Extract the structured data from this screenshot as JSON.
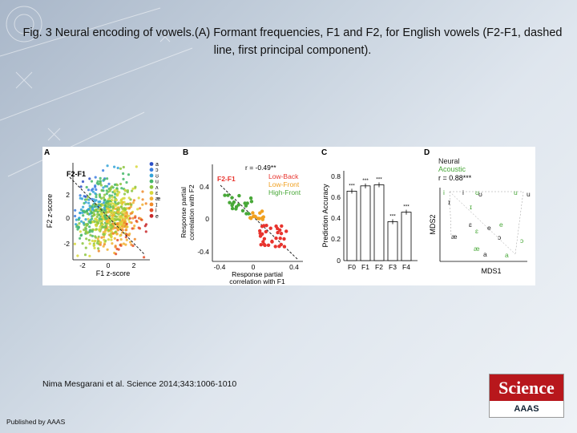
{
  "slide": {
    "title": "Fig. 3 Neural encoding of vowels.(A) Formant frequencies, F1 and F2, for English vowels (F2-F1, dashed line, first principal component).",
    "citation": "Nima Mesgarani et al. Science 2014;343:1006-1010",
    "publisher": "Published by AAAS"
  },
  "logo": {
    "top_text": "Science",
    "bottom_text": "AAAS"
  },
  "figure": {
    "panels": [
      {
        "id": "A",
        "label": "A",
        "line_label": "F2-F1",
        "xlabel": "F1 z-score",
        "ylabel": "F2 z-score",
        "xticks": [
          "-2",
          "0",
          "2"
        ],
        "yticks": [
          "2",
          "0",
          "-2"
        ],
        "legend": [
          "a",
          "ɔ",
          "ʊ",
          "u",
          "ʌ",
          "ɛ",
          "æ",
          "ɪ",
          "i",
          "e"
        ]
      },
      {
        "id": "B",
        "label": "B",
        "line_label": "F2-F1",
        "stat": "r = -0.49**",
        "legend": [
          {
            "name": "Low-Back",
            "color": "#e8342e"
          },
          {
            "name": "Low-Front",
            "color": "#f0a020"
          },
          {
            "name": "High-Front",
            "color": "#48a838"
          }
        ],
        "xlabel_line1": "Response partial",
        "xlabel_line2": "correlation with F1",
        "ylabel_line1": "Response partial",
        "ylabel_line2": "correlation with F2",
        "xticks": [
          "-0.4",
          "0",
          "0.4"
        ],
        "yticks": [
          "0.4",
          "0",
          "-0.4"
        ]
      },
      {
        "id": "C",
        "label": "C",
        "ylabel": "Prediction Accuracy",
        "yticks": [
          "0.8",
          "0.6",
          "0.4",
          "0.2",
          "0"
        ]
      },
      {
        "id": "D",
        "label": "D",
        "legend_neural": "Neural",
        "legend_acoustic": "Acoustic",
        "stat": "r = 0.88***",
        "xlabel": "MDS1",
        "ylabel": "MDS2"
      }
    ]
  },
  "chart_data": {
    "type": "bar",
    "categories": [
      "F0",
      "F1",
      "F2",
      "F3",
      "F4"
    ],
    "values": [
      0.66,
      0.71,
      0.72,
      0.37,
      0.46
    ],
    "significance": [
      "***",
      "***",
      "***",
      "***",
      "***"
    ],
    "ylabel": "Prediction Accuracy",
    "ylim": [
      0,
      0.8
    ]
  }
}
